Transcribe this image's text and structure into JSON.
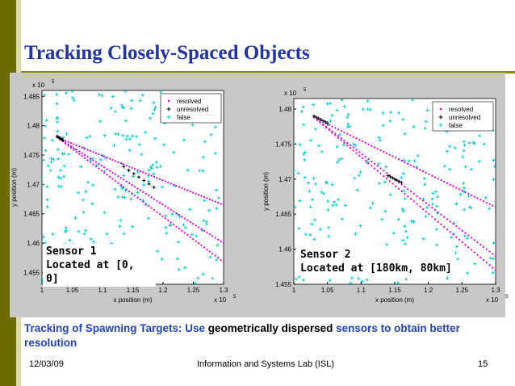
{
  "slide": {
    "title": "Tracking Closely-Spaced Objects",
    "caption_parts": [
      {
        "text": "Tracking of Spawning Targets: Use ",
        "color": "blue"
      },
      {
        "text": "geometrically dispersed ",
        "color": "black"
      },
      {
        "text": "sensors to obtain better resolution",
        "color": "blue"
      }
    ],
    "footer": {
      "date": "12/03/09",
      "org": "Information and Systems Lab (ISL)",
      "page": "15"
    }
  },
  "colors": {
    "title": "#2233aa",
    "bar": "#6b6b00",
    "resolved": "#dd00dd",
    "unresolved": "#000000",
    "false": "#00cccc"
  },
  "chart_data": [
    {
      "type": "scatter",
      "title": "",
      "xlabel": "x position (m)",
      "ylabel": "y position (m)",
      "x_multiplier": "x 10^5",
      "y_multiplier": "x 10^5",
      "xlim": [
        1.0,
        1.3
      ],
      "ylim": [
        1.453,
        1.486
      ],
      "xticks": [
        "1",
        "1.05",
        "1.1",
        "1.15",
        "1.2",
        "1.25",
        "1.3"
      ],
      "yticks": [
        "1.455",
        "1.46",
        "1.465",
        "1.47",
        "1.475",
        "1.48",
        "1.485"
      ],
      "legend": [
        "resolved",
        "unresolved",
        "false"
      ],
      "legend_position": "top-right",
      "annotation": [
        "Sensor 1",
        "Located at [0, 0]"
      ],
      "series": [
        {
          "name": "resolved",
          "marker": "dot",
          "tracks": [
            {
              "from": [
                1.025,
                1.478
              ],
              "to": [
                1.3,
                1.4665
              ]
            },
            {
              "from": [
                1.025,
                1.478
              ],
              "to": [
                1.3,
                1.4568
              ]
            },
            {
              "from": [
                1.025,
                1.478
              ],
              "to": [
                1.3,
                1.46
              ]
            }
          ]
        },
        {
          "name": "unresolved",
          "marker": "plus",
          "segments": [
            {
              "from": [
                1.025,
                1.4782
              ],
              "to": [
                1.035,
                1.4775
              ]
            },
            {
              "from": [
                1.135,
                1.473
              ],
              "to": [
                1.185,
                1.4695
              ]
            }
          ]
        },
        {
          "name": "false",
          "marker": "plus",
          "count": 240,
          "distribution": "uniform clutter"
        }
      ]
    },
    {
      "type": "scatter",
      "title": "",
      "xlabel": "x position (m)",
      "ylabel": "y position (m)",
      "x_multiplier": "x 10^5",
      "y_multiplier": "x 10^5",
      "xlim": [
        1.0,
        1.3
      ],
      "ylim": [
        1.455,
        1.4815
      ],
      "xticks": [
        "1",
        "1.05",
        "1.1",
        "1.15",
        "1.2",
        "1.25",
        "1.3"
      ],
      "yticks": [
        "1.455",
        "1.46",
        "1.465",
        "1.47",
        "1.475",
        "1.48"
      ],
      "legend": [
        "resolved",
        "unresolved",
        "false"
      ],
      "legend_position": "top-right",
      "annotation": [
        "Sensor 2",
        "Located at [180km, 80km]"
      ],
      "series": [
        {
          "name": "resolved",
          "marker": "dot",
          "tracks": [
            {
              "from": [
                1.03,
                1.4788
              ],
              "to": [
                1.3,
                1.466
              ]
            },
            {
              "from": [
                1.03,
                1.4788
              ],
              "to": [
                1.3,
                1.457
              ]
            },
            {
              "from": [
                1.03,
                1.4788
              ],
              "to": [
                1.3,
                1.459
              ]
            }
          ]
        },
        {
          "name": "unresolved",
          "marker": "plus",
          "segments": [
            {
              "from": [
                1.03,
                1.479
              ],
              "to": [
                1.05,
                1.478
              ]
            },
            {
              "from": [
                1.14,
                1.4705
              ],
              "to": [
                1.16,
                1.4695
              ]
            }
          ]
        },
        {
          "name": "false",
          "marker": "plus",
          "count": 240,
          "distribution": "uniform clutter"
        }
      ]
    }
  ]
}
